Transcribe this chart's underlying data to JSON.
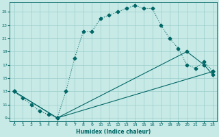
{
  "xlabel": "Humidex (Indice chaleur)",
  "background_color": "#c8eae6",
  "line_color": "#006666",
  "grid_color": "#99cccc",
  "xlim": [
    -0.5,
    23.5
  ],
  "ylim": [
    8.5,
    26.5
  ],
  "yticks": [
    9,
    11,
    13,
    15,
    17,
    19,
    21,
    23,
    25
  ],
  "xticks": [
    0,
    1,
    2,
    3,
    4,
    5,
    6,
    7,
    8,
    9,
    10,
    11,
    12,
    13,
    14,
    15,
    16,
    17,
    18,
    19,
    20,
    21,
    22,
    23
  ],
  "curve1_x": [
    0,
    1,
    2,
    3,
    4,
    5,
    6,
    7,
    8,
    9,
    10,
    11,
    12,
    13,
    14,
    15,
    16,
    17,
    18,
    19,
    20,
    21,
    22,
    23
  ],
  "curve1_y": [
    13,
    12,
    11,
    10,
    9.5,
    9,
    13,
    18,
    22,
    22,
    24,
    24.5,
    25,
    25.5,
    26,
    25.5,
    25.5,
    23,
    21,
    19.5,
    17,
    16.5,
    17.5,
    16
  ],
  "line2_x": [
    0,
    5,
    23
  ],
  "line2_y": [
    13,
    9,
    16
  ],
  "line3_x": [
    0,
    5,
    20,
    22,
    23
  ],
  "line3_y": [
    13,
    9,
    19,
    17,
    15.5
  ],
  "figsize": [
    3.2,
    2.0
  ],
  "dpi": 100
}
